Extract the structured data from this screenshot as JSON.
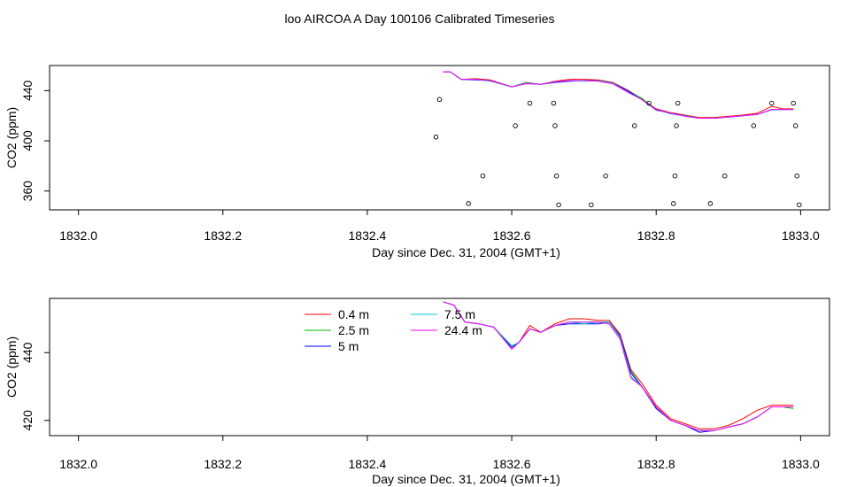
{
  "title": "loo AIRCOA A  Day 100106  Calibrated Timeseries",
  "chart_data": [
    {
      "type": "line",
      "xlabel": "Day since Dec. 31, 2004 (GMT+1)",
      "ylabel": "CO2 (ppm)",
      "xlim": [
        1831.96,
        1833.04
      ],
      "ylim": [
        345,
        460
      ],
      "xticks": [
        1832.0,
        1832.2,
        1832.4,
        1832.6,
        1832.8,
        1833.0
      ],
      "xtick_labels": [
        "1832.0",
        "1832.2",
        "1832.4",
        "1832.6",
        "1832.8",
        "1833.0"
      ],
      "yticks": [
        360,
        400,
        440
      ],
      "ytick_labels": [
        "360",
        "400",
        "440"
      ],
      "grid": false,
      "base_series": {
        "x": [
          1832.505,
          1832.515,
          1832.53,
          1832.55,
          1832.57,
          1832.6,
          1832.62,
          1832.64,
          1832.66,
          1832.68,
          1832.7,
          1832.72,
          1832.74,
          1832.76,
          1832.78,
          1832.8,
          1832.82,
          1832.84,
          1832.86,
          1832.88,
          1832.9,
          1832.92,
          1832.94,
          1832.96,
          1832.975,
          1832.99
        ],
        "y": [
          455,
          455,
          449,
          449,
          448,
          443,
          446,
          445,
          447,
          448,
          448,
          448,
          446,
          440,
          433,
          425,
          422,
          420,
          418,
          418,
          419,
          420,
          421,
          425,
          425,
          425
        ]
      },
      "series": [
        {
          "name": "0.4 m",
          "color": "#ff0000",
          "offsets": [
            0,
            0,
            0,
            0.5,
            0.5,
            0,
            0.5,
            0,
            0.5,
            1,
            1,
            0.5,
            0.5,
            0.5,
            0.5,
            0.5,
            0.5,
            0.5,
            0.5,
            0.5,
            0.5,
            0.5,
            1,
            2.5,
            0.5,
            0.5
          ]
        },
        {
          "name": "2.5 m",
          "color": "#00bb00",
          "offsets": [
            0,
            0,
            0,
            0,
            0,
            0,
            0,
            0,
            0,
            0,
            0,
            0,
            0,
            0,
            1,
            0,
            0,
            0,
            0,
            0,
            0,
            0,
            0,
            0,
            0,
            0
          ]
        },
        {
          "name": "5 m",
          "color": "#0000ff",
          "offsets": [
            0,
            0,
            0,
            -0.5,
            0,
            0,
            0,
            0,
            -0.5,
            -0.5,
            0,
            0,
            0,
            0,
            0,
            -0.5,
            0,
            0,
            0,
            0,
            0,
            0,
            0,
            0,
            0,
            0
          ]
        },
        {
          "name": "7.5 m",
          "color": "#00cccc",
          "offsets": [
            0,
            0,
            0,
            0,
            -0.5,
            0,
            0,
            0,
            0,
            0,
            -0.5,
            0,
            0,
            -1,
            0,
            0,
            -0.5,
            0,
            0,
            0,
            0,
            0,
            0,
            -0.5,
            0,
            0
          ]
        },
        {
          "name": "24.4 m",
          "color": "#ff00ff",
          "offsets": [
            0,
            0,
            0,
            0,
            0,
            0,
            -0.5,
            0,
            0,
            0,
            0,
            -0.5,
            -0.5,
            -1,
            0,
            0,
            0,
            -0.5,
            0,
            0,
            0,
            0,
            0,
            0,
            0,
            0
          ]
        }
      ],
      "points": {
        "x": [
          1832.495,
          1832.5,
          1832.54,
          1832.56,
          1832.605,
          1832.625,
          1832.658,
          1832.66,
          1832.662,
          1832.665,
          1832.71,
          1832.73,
          1832.77,
          1832.79,
          1832.824,
          1832.826,
          1832.828,
          1832.83,
          1832.875,
          1832.895,
          1832.935,
          1832.96,
          1832.99,
          1832.993,
          1832.995,
          1832.998
        ],
        "y": [
          403,
          433,
          350,
          372,
          412,
          430,
          430,
          412,
          372,
          349,
          349,
          372,
          412,
          430,
          350,
          372,
          412,
          430,
          350,
          372,
          412,
          430,
          430,
          412,
          372,
          349
        ]
      }
    },
    {
      "type": "line",
      "xlabel": "Day since Dec. 31, 2004 (GMT+1)",
      "ylabel": "CO2 (ppm)",
      "xlim": [
        1831.96,
        1833.04
      ],
      "ylim": [
        415.5,
        456
      ],
      "xticks": [
        1832.0,
        1832.2,
        1832.4,
        1832.6,
        1832.8,
        1833.0
      ],
      "xtick_labels": [
        "1832.0",
        "1832.2",
        "1832.4",
        "1832.6",
        "1832.8",
        "1833.0"
      ],
      "yticks": [
        420,
        440
      ],
      "ytick_labels": [
        "420",
        "440"
      ],
      "grid": false,
      "legend": "top-center",
      "base_series": {
        "x": [
          1832.505,
          1832.52,
          1832.535,
          1832.555,
          1832.575,
          1832.6,
          1832.61,
          1832.625,
          1832.64,
          1832.66,
          1832.68,
          1832.7,
          1832.72,
          1832.735,
          1832.75,
          1832.765,
          1832.78,
          1832.8,
          1832.82,
          1832.84,
          1832.86,
          1832.88,
          1832.9,
          1832.92,
          1832.94,
          1832.96,
          1832.975,
          1832.99
        ],
        "y": [
          455,
          454,
          449,
          448.5,
          447.5,
          442,
          443,
          447,
          446,
          448,
          449,
          449,
          449,
          449,
          445,
          434,
          430,
          424,
          420,
          418.5,
          417,
          417,
          418,
          419,
          421,
          424,
          424,
          424
        ]
      },
      "series": [
        {
          "name": "0.4 m",
          "color": "#ff0000",
          "offsets": [
            0,
            0,
            0,
            0,
            0,
            0,
            0,
            1,
            0,
            0.5,
            1,
            1,
            0.5,
            0.5,
            0.5,
            1,
            1,
            0.5,
            0.5,
            0.5,
            0.5,
            0.5,
            0.5,
            1.5,
            2,
            0.5,
            0.5,
            0.5
          ]
        },
        {
          "name": "2.5 m",
          "color": "#00bb00",
          "offsets": [
            0,
            0,
            0,
            0,
            0,
            0,
            0,
            0,
            0,
            0,
            0,
            0,
            0,
            0,
            0,
            0.5,
            0,
            0,
            0,
            0,
            0,
            0,
            0,
            0,
            0,
            0,
            0,
            -0.5
          ]
        },
        {
          "name": "5 m",
          "color": "#0000ff",
          "offsets": [
            0,
            0,
            0,
            0,
            0,
            -0.5,
            0,
            0,
            0,
            0,
            -0.5,
            -0.5,
            -0.5,
            0,
            0,
            0,
            0,
            -0.5,
            0,
            0,
            -0.5,
            0,
            0,
            0,
            0,
            0,
            0,
            0
          ]
        },
        {
          "name": "7.5 m",
          "color": "#00cccc",
          "offsets": [
            0,
            0,
            0,
            0,
            0,
            0,
            0,
            0,
            0,
            0,
            0,
            -0.5,
            0,
            0,
            -0.5,
            -1,
            0,
            0,
            0,
            0,
            0,
            0,
            0,
            0,
            0,
            0,
            0,
            0
          ]
        },
        {
          "name": "24.4 m",
          "color": "#ff00ff",
          "offsets": [
            0,
            0,
            0,
            0,
            0,
            -1,
            0,
            0,
            0,
            0,
            0,
            0,
            0,
            -0.5,
            -1,
            -1.5,
            0,
            0,
            0,
            0,
            0,
            0,
            0,
            0,
            0,
            0,
            0,
            0
          ]
        }
      ]
    }
  ]
}
